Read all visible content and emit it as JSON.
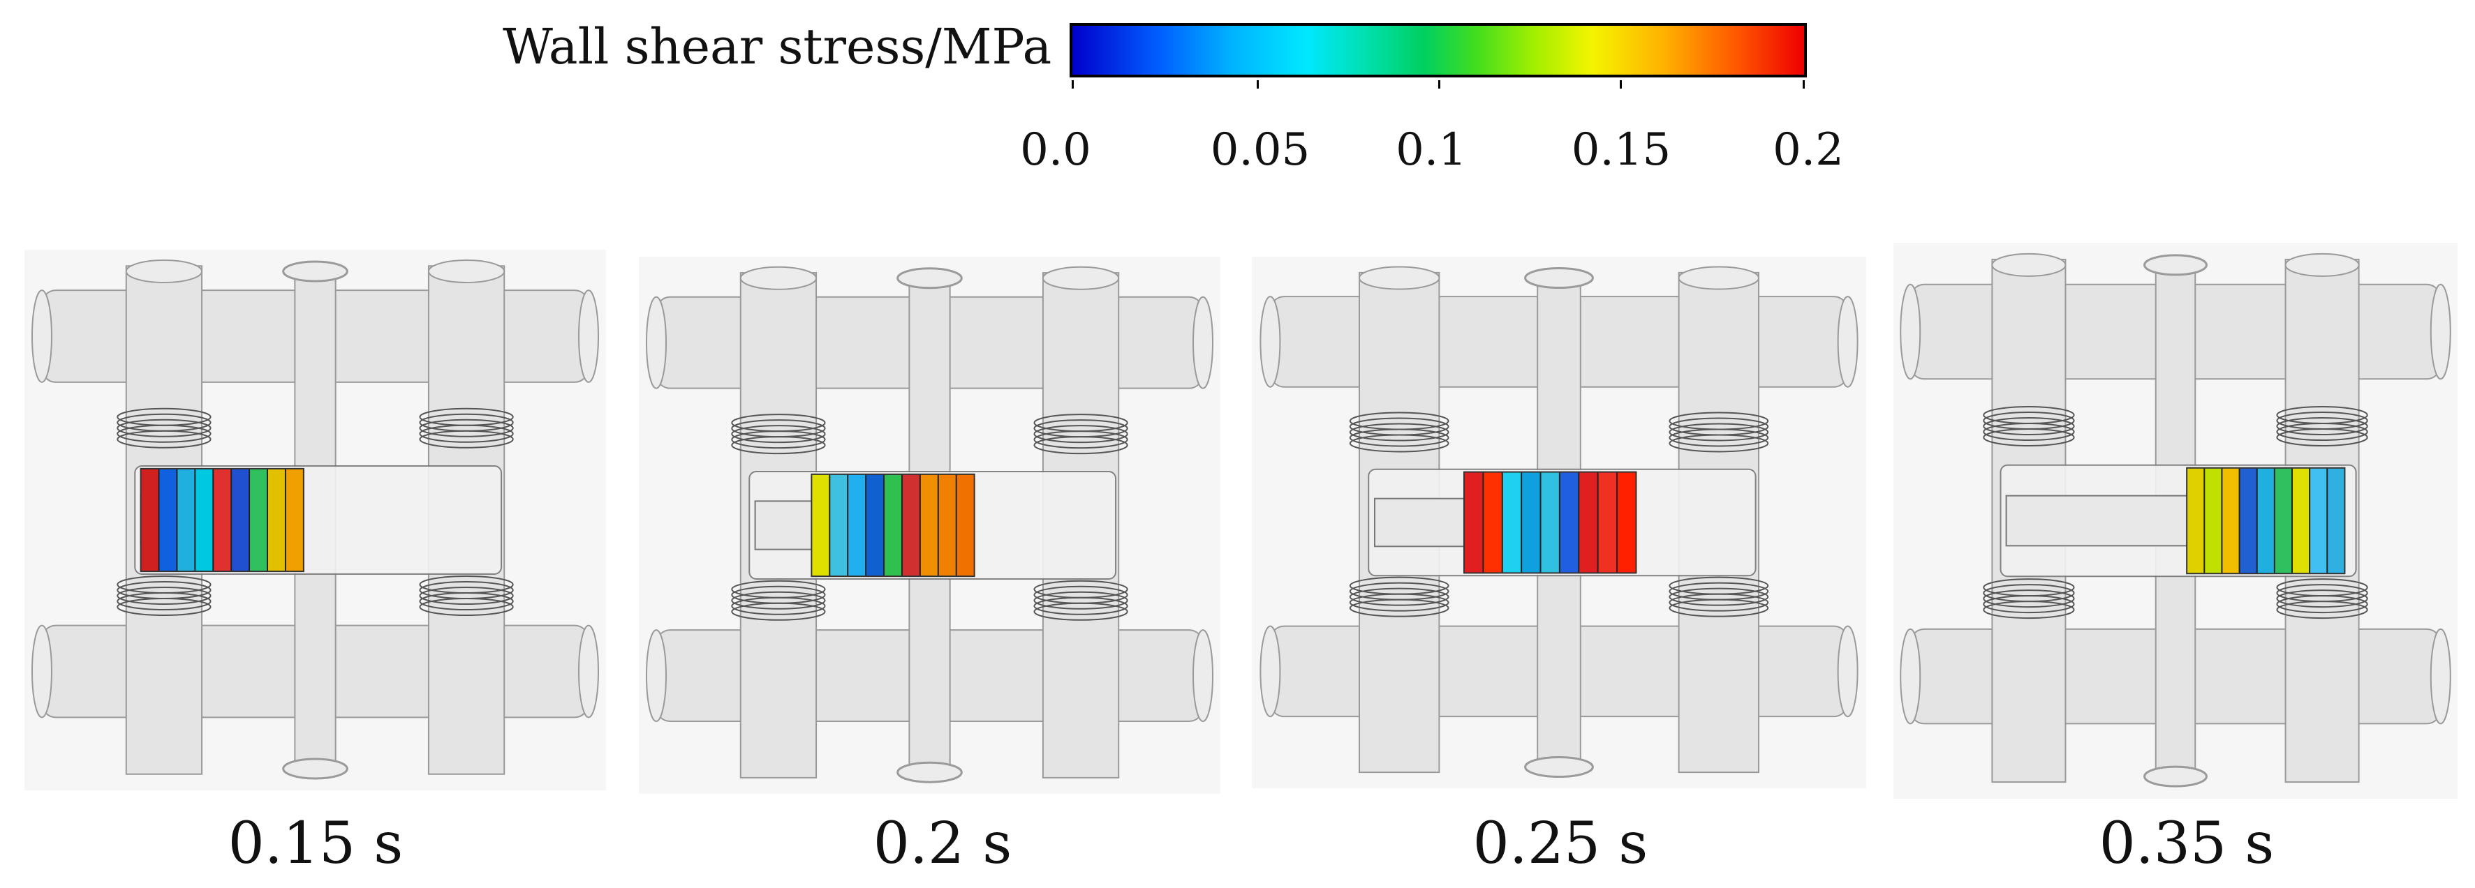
{
  "colorbar": {
    "title": "Wall shear stress/MPa",
    "ticks": [
      "0.0",
      "0.05",
      "0.1",
      "0.15",
      "0.2"
    ],
    "tick_values": [
      0.0,
      0.05,
      0.1,
      0.15,
      0.2
    ],
    "colors": [
      "#0000cc",
      "#00b4ff",
      "#00e8ff",
      "#00d060",
      "#f4f400",
      "#ff5500",
      "#ee0000"
    ]
  },
  "panels": [
    {
      "time": "0.15 s",
      "piston_position": 0.35
    },
    {
      "time": "0.2 s",
      "piston_position": 0.45
    },
    {
      "time": "0.25 s",
      "piston_position": 0.5
    },
    {
      "time": "0.35 s",
      "piston_position": 0.68
    }
  ]
}
